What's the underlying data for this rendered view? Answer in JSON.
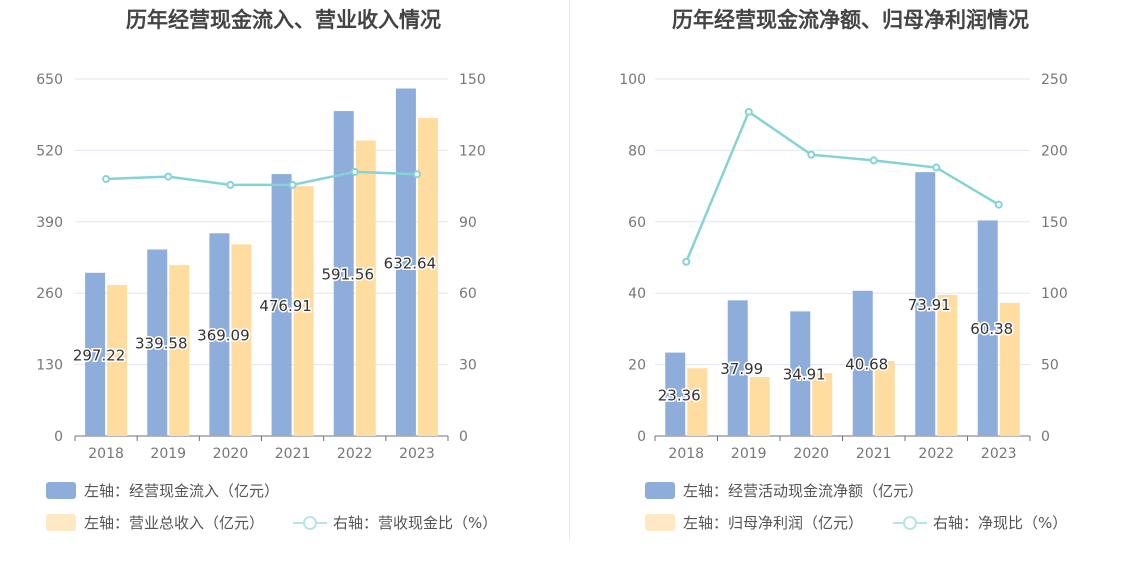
{
  "colors": {
    "blue": "#8eadda",
    "orange": "#ffdc9f",
    "teal": "#86d3d6",
    "grid": "#e3e6ef",
    "tick": "#777777"
  },
  "chart_data": [
    {
      "type": "bar",
      "title": "历年经营现金流入、营业收入情况",
      "categories": [
        "2018",
        "2019",
        "2020",
        "2021",
        "2022",
        "2023"
      ],
      "left_axis": {
        "ticks": [
          "0",
          "130",
          "260",
          "390",
          "520",
          "650"
        ],
        "ylim": [
          0,
          650
        ]
      },
      "right_axis": {
        "ticks": [
          "0",
          "30",
          "60",
          "90",
          "120",
          "150"
        ],
        "ylim": [
          0,
          150
        ]
      },
      "series": [
        {
          "name": "左轴：经营现金流入（亿元）",
          "axis": "left",
          "kind": "bar",
          "values": [
            297.22,
            339.58,
            369.09,
            476.91,
            591.56,
            632.64
          ],
          "labels": [
            "297.22",
            "339.58",
            "369.09",
            "476.91",
            "591.56",
            "632.64"
          ]
        },
        {
          "name": "左轴：营业总收入（亿元）",
          "axis": "left",
          "kind": "bar",
          "values": [
            275,
            311,
            349,
            455,
            538,
            579
          ]
        },
        {
          "name": "右轴：营收现金比（%）",
          "axis": "right",
          "kind": "line",
          "values": [
            108,
            109,
            105.5,
            105.5,
            111,
            110
          ]
        }
      ],
      "legend": {
        "position": "bottom"
      }
    },
    {
      "type": "bar",
      "title": "历年经营现金流净额、归母净利润情况",
      "categories": [
        "2018",
        "2019",
        "2020",
        "2021",
        "2022",
        "2023"
      ],
      "left_axis": {
        "ticks": [
          "0",
          "20",
          "40",
          "60",
          "80",
          "100"
        ],
        "ylim": [
          0,
          100
        ]
      },
      "right_axis": {
        "ticks": [
          "0",
          "50",
          "100",
          "150",
          "200",
          "250"
        ],
        "ylim": [
          0,
          250
        ]
      },
      "series": [
        {
          "name": "左轴：经营活动现金流净额（亿元）",
          "axis": "left",
          "kind": "bar",
          "values": [
            23.36,
            37.99,
            34.91,
            40.68,
            73.91,
            60.38
          ],
          "labels": [
            "23.36",
            "37.99",
            "34.91",
            "40.68",
            "73.91",
            "60.38"
          ]
        },
        {
          "name": "左轴：归母净利润（亿元）",
          "axis": "left",
          "kind": "bar",
          "values": [
            19,
            16.5,
            17.6,
            21,
            39.5,
            37.3
          ]
        },
        {
          "name": "右轴：净现比（%）",
          "axis": "right",
          "kind": "line",
          "values": [
            122,
            227,
            197,
            193,
            188,
            162
          ]
        }
      ],
      "legend": {
        "position": "bottom"
      }
    }
  ]
}
